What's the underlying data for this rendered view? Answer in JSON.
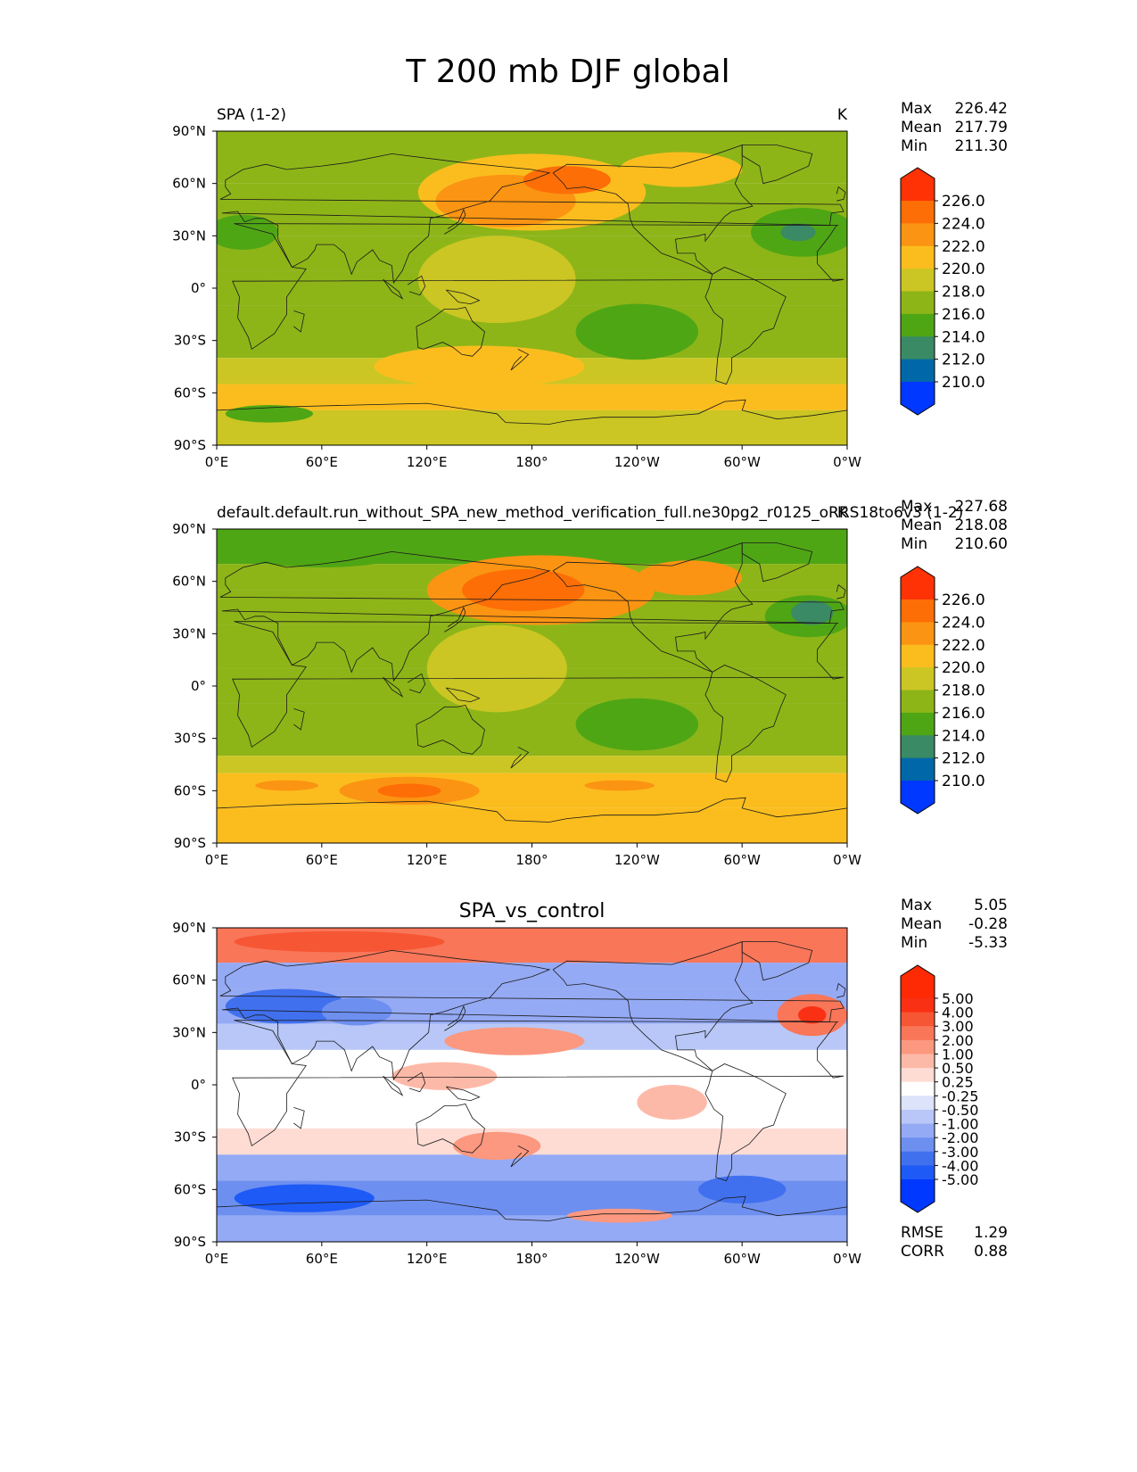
{
  "title": "T 200 mb DJF global",
  "colors": {
    "test_levels": [
      "#0038ff",
      "#0068a8",
      "#3a8a65",
      "#4fa615",
      "#8db518",
      "#cbc623",
      "#fbbd1e",
      "#fb9412",
      "#fd6e07",
      "#fe3205"
    ],
    "diff_levels": [
      "#0038ff",
      "#1e5af6",
      "#4070ee",
      "#6d8ff0",
      "#95aaf4",
      "#b8c7f7",
      "#dce3fb",
      "#ffffff",
      "#fedcd4",
      "#fdb9a8",
      "#fb987f",
      "#f97659",
      "#f65634",
      "#fa3014",
      "#fe2a04"
    ]
  },
  "chart_data": [
    {
      "type": "heatmap",
      "panel": "test",
      "title_left": "SPA (1-2)",
      "title_right": "K",
      "xticks": [
        "0°E",
        "60°E",
        "120°E",
        "180°",
        "120°W",
        "60°W",
        "0°W"
      ],
      "yticks": [
        "90°N",
        "60°N",
        "30°N",
        "0°",
        "30°S",
        "60°S",
        "90°S"
      ],
      "xlim": [
        0,
        360
      ],
      "ylim": [
        -90,
        90
      ],
      "stats": [
        {
          "label": "Max",
          "value": "226.42"
        },
        {
          "label": "Mean",
          "value": "217.79"
        },
        {
          "label": "Min",
          "value": "211.30"
        }
      ],
      "colorbar_levels": [
        "226.0",
        "224.0",
        "222.0",
        "220.0",
        "218.0",
        "216.0",
        "214.0",
        "212.0",
        "210.0"
      ],
      "bands": [
        {
          "lat": [
            60,
            90
          ],
          "value": 217
        },
        {
          "lat": [
            30,
            60
          ],
          "value": 216
        },
        {
          "lat": [
            10,
            30
          ],
          "value": 216
        },
        {
          "lat": [
            -10,
            10
          ],
          "value": 217
        },
        {
          "lat": [
            -40,
            -10
          ],
          "value": 216
        },
        {
          "lat": [
            -55,
            -40
          ],
          "value": 219
        },
        {
          "lat": [
            -70,
            -55
          ],
          "value": 220
        },
        {
          "lat": [
            -90,
            -70
          ],
          "value": 219
        }
      ],
      "blobs": [
        {
          "lon": 180,
          "lat": 55,
          "rlon": 65,
          "rlat": 22,
          "value": 221
        },
        {
          "lon": 165,
          "lat": 50,
          "rlon": 40,
          "rlat": 15,
          "value": 223
        },
        {
          "lon": 200,
          "lat": 62,
          "rlon": 25,
          "rlat": 8,
          "value": 225
        },
        {
          "lon": 265,
          "lat": 68,
          "rlon": 35,
          "rlat": 10,
          "value": 221
        },
        {
          "lon": 335,
          "lat": 32,
          "rlon": 30,
          "rlat": 14,
          "value": 214
        },
        {
          "lon": 332,
          "lat": 32,
          "rlon": 10,
          "rlat": 5,
          "value": 212
        },
        {
          "lon": 15,
          "lat": 32,
          "rlon": 20,
          "rlat": 10,
          "value": 214
        },
        {
          "lon": 160,
          "lat": 5,
          "rlon": 45,
          "rlat": 25,
          "value": 218
        },
        {
          "lon": 240,
          "lat": -25,
          "rlon": 35,
          "rlat": 16,
          "value": 215
        },
        {
          "lon": 240,
          "lat": -30,
          "rlon": 12,
          "rlat": 6,
          "value": 214
        },
        {
          "lon": 30,
          "lat": -72,
          "rlon": 25,
          "rlat": 5,
          "value": 214
        },
        {
          "lon": 150,
          "lat": -45,
          "rlon": 60,
          "rlat": 12,
          "value": 220
        }
      ]
    },
    {
      "type": "heatmap",
      "panel": "reference",
      "title_left": "default.default.run_without_SPA_new_method_verification_full.ne30pg2_r0125_oRRS18to6v3 (1-2)",
      "title_right": "K",
      "xticks": [
        "0°E",
        "60°E",
        "120°E",
        "180°",
        "120°W",
        "60°W",
        "0°W"
      ],
      "yticks": [
        "90°N",
        "60°N",
        "30°N",
        "0°",
        "30°S",
        "60°S",
        "90°S"
      ],
      "xlim": [
        0,
        360
      ],
      "ylim": [
        -90,
        90
      ],
      "stats": [
        {
          "label": "Max",
          "value": "227.68"
        },
        {
          "label": "Mean",
          "value": "218.08"
        },
        {
          "label": "Min",
          "value": "210.60"
        }
      ],
      "colorbar_levels": [
        "226.0",
        "224.0",
        "222.0",
        "220.0",
        "218.0",
        "216.0",
        "214.0",
        "212.0",
        "210.0"
      ],
      "bands": [
        {
          "lat": [
            70,
            90
          ],
          "value": 214
        },
        {
          "lat": [
            55,
            70
          ],
          "value": 216
        },
        {
          "lat": [
            35,
            55
          ],
          "value": 217
        },
        {
          "lat": [
            10,
            35
          ],
          "value": 216
        },
        {
          "lat": [
            -10,
            10
          ],
          "value": 216
        },
        {
          "lat": [
            -40,
            -10
          ],
          "value": 216
        },
        {
          "lat": [
            -50,
            -40
          ],
          "value": 219
        },
        {
          "lat": [
            -70,
            -50
          ],
          "value": 221
        },
        {
          "lat": [
            -90,
            -70
          ],
          "value": 220
        }
      ],
      "blobs": [
        {
          "lon": 185,
          "lat": 55,
          "rlon": 65,
          "rlat": 20,
          "value": 222
        },
        {
          "lon": 175,
          "lat": 55,
          "rlon": 35,
          "rlat": 12,
          "value": 225
        },
        {
          "lon": 270,
          "lat": 62,
          "rlon": 30,
          "rlat": 10,
          "value": 223
        },
        {
          "lon": 338,
          "lat": 40,
          "rlon": 25,
          "rlat": 12,
          "value": 214
        },
        {
          "lon": 340,
          "lat": 42,
          "rlon": 12,
          "rlat": 7,
          "value": 212
        },
        {
          "lon": 60,
          "lat": 78,
          "rlon": 50,
          "rlat": 10,
          "value": 214
        },
        {
          "lon": 160,
          "lat": 10,
          "rlon": 40,
          "rlat": 25,
          "value": 218
        },
        {
          "lon": 240,
          "lat": -22,
          "rlon": 35,
          "rlat": 15,
          "value": 215
        },
        {
          "lon": 240,
          "lat": -27,
          "rlon": 12,
          "rlat": 7,
          "value": 214
        },
        {
          "lon": 110,
          "lat": -60,
          "rlon": 40,
          "rlat": 8,
          "value": 223
        },
        {
          "lon": 110,
          "lat": -60,
          "rlon": 18,
          "rlat": 4,
          "value": 224
        },
        {
          "lon": 40,
          "lat": -57,
          "rlon": 18,
          "rlat": 3,
          "value": 222
        },
        {
          "lon": 230,
          "lat": -57,
          "rlon": 20,
          "rlat": 3,
          "value": 222
        }
      ]
    },
    {
      "type": "heatmap",
      "panel": "difference",
      "title_center": "SPA_vs_control",
      "xticks": [
        "0°E",
        "60°E",
        "120°E",
        "180°",
        "120°W",
        "60°W",
        "0°W"
      ],
      "yticks": [
        "90°N",
        "60°N",
        "30°N",
        "0°",
        "30°S",
        "60°S",
        "90°S"
      ],
      "xlim": [
        0,
        360
      ],
      "ylim": [
        -90,
        90
      ],
      "stats": [
        {
          "label": "Max",
          "value": "5.05"
        },
        {
          "label": "Mean",
          "value": "-0.28"
        },
        {
          "label": "Min",
          "value": "-5.33"
        }
      ],
      "colorbar_levels": [
        "5.00",
        "4.00",
        "3.00",
        "2.00",
        "1.00",
        "0.50",
        "0.25",
        "-0.25",
        "-0.50",
        "-1.00",
        "-2.00",
        "-3.00",
        "-4.00",
        "-5.00"
      ],
      "metrics": [
        {
          "label": "RMSE",
          "value": "1.29"
        },
        {
          "label": "CORR",
          "value": "0.88"
        }
      ],
      "bands": [
        {
          "lat": [
            70,
            90
          ],
          "value": 2.5
        },
        {
          "lat": [
            55,
            70
          ],
          "value": -1.5
        },
        {
          "lat": [
            35,
            55
          ],
          "value": -1.5
        },
        {
          "lat": [
            20,
            35
          ],
          "value": -0.6
        },
        {
          "lat": [
            -25,
            20
          ],
          "value": 0.0
        },
        {
          "lat": [
            -40,
            -25
          ],
          "value": 0.3
        },
        {
          "lat": [
            -55,
            -40
          ],
          "value": -1.5
        },
        {
          "lat": [
            -75,
            -55
          ],
          "value": -2.5
        },
        {
          "lat": [
            -90,
            -75
          ],
          "value": -1.5
        }
      ],
      "blobs": [
        {
          "lon": 70,
          "lat": 82,
          "rlon": 60,
          "rlat": 6,
          "value": 3.5
        },
        {
          "lon": 40,
          "lat": 45,
          "rlon": 35,
          "rlat": 10,
          "value": -3.5
        },
        {
          "lon": 80,
          "lat": 42,
          "rlon": 20,
          "rlat": 8,
          "value": -2.5
        },
        {
          "lon": 340,
          "lat": 40,
          "rlon": 20,
          "rlat": 12,
          "value": 2.5
        },
        {
          "lon": 340,
          "lat": 40,
          "rlon": 8,
          "rlat": 5,
          "value": 4.5
        },
        {
          "lon": 170,
          "lat": 25,
          "rlon": 40,
          "rlat": 8,
          "value": 1.5
        },
        {
          "lon": 130,
          "lat": 5,
          "rlon": 30,
          "rlat": 8,
          "value": 0.7
        },
        {
          "lon": 160,
          "lat": -35,
          "rlon": 25,
          "rlat": 8,
          "value": 1.5
        },
        {
          "lon": 50,
          "lat": -65,
          "rlon": 40,
          "rlat": 8,
          "value": -4.5
        },
        {
          "lon": 300,
          "lat": -60,
          "rlon": 25,
          "rlat": 8,
          "value": -3.5
        },
        {
          "lon": 230,
          "lat": -75,
          "rlon": 30,
          "rlat": 4,
          "value": 1.5
        },
        {
          "lon": 260,
          "lat": -10,
          "rlon": 20,
          "rlat": 10,
          "value": 0.7
        }
      ]
    }
  ]
}
